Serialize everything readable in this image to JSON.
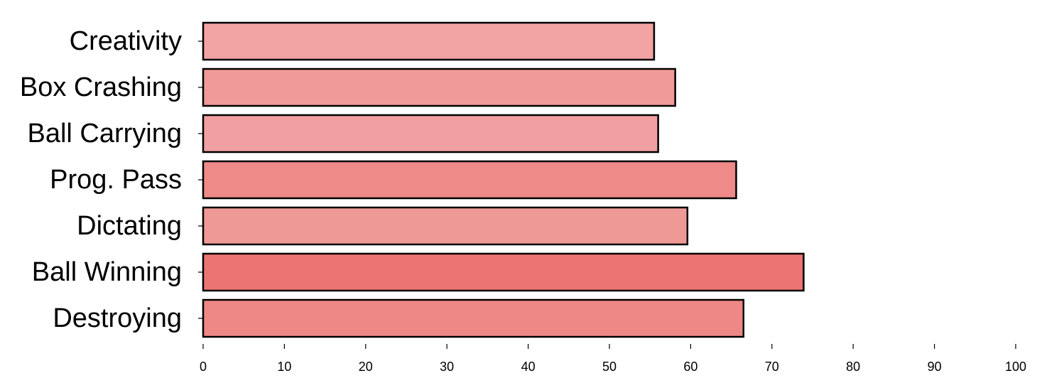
{
  "chart_data": {
    "type": "barh",
    "categories": [
      "Creativity",
      "Box Crashing",
      "Ball Carrying",
      "Prog. Pass",
      "Dictating",
      "Ball Winning",
      "Destroying"
    ],
    "values": [
      55.5,
      58.1,
      56.0,
      65.6,
      59.6,
      73.9,
      66.5
    ],
    "colors": [
      "#f2a3a3",
      "#f09b99",
      "#f0a0a2",
      "#ee8a88",
      "#ef9996",
      "#ec7473",
      "#ee8886"
    ],
    "xlim": [
      0,
      100
    ],
    "xticks": [
      0,
      10,
      20,
      30,
      40,
      50,
      60,
      70,
      80,
      90,
      100
    ],
    "grid": false
  }
}
